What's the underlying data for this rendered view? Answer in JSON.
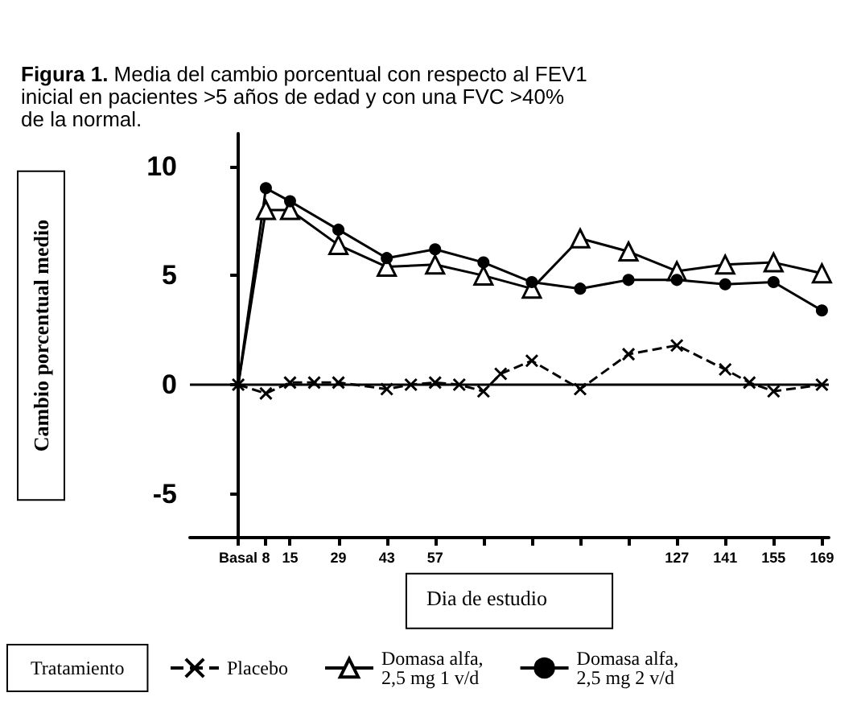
{
  "chart_data": {
    "type": "line",
    "title": "Figura 1. Media del cambio porcentual con respecto al FEV1 inicial en pacientes >5 años de edad y con una FVC >40% de la normal.",
    "xlabel": "Dia de estudio",
    "ylabel": "Cambio porcentual medio",
    "legend_title": "Tratamiento",
    "xlim": [
      -14,
      171
    ],
    "xticks": [
      {
        "value": 0,
        "label": "Basal"
      },
      8,
      15,
      29,
      43,
      57,
      {
        "value": 71,
        "label": null
      },
      {
        "value": 85,
        "label": null
      },
      {
        "value": 99,
        "label": null
      },
      {
        "value": 113,
        "label": null
      },
      127,
      141,
      155,
      169
    ],
    "ylim": [
      -7,
      11.5
    ],
    "yticks": [
      -5,
      0,
      5,
      10
    ],
    "grid": false,
    "legend": "bottom",
    "ref_lines": [
      {
        "axis": "y",
        "value": 0,
        "label": null
      }
    ],
    "series": [
      {
        "name": "Placebo",
        "color": "#000000",
        "marker": "cross",
        "line_style": "dashed",
        "x": [
          0,
          8,
          15,
          22,
          29,
          43,
          50,
          57,
          64,
          71,
          76,
          85,
          99,
          113,
          127,
          141,
          148,
          155,
          169
        ],
        "values": [
          0,
          -0.4,
          0.1,
          0.1,
          0.1,
          -0.2,
          0,
          0.1,
          0,
          -0.3,
          0.5,
          1.1,
          -0.2,
          1.4,
          1.8,
          0.7,
          0.1,
          -0.3,
          0
        ]
      },
      {
        "name": "Domasa alfa,\n2,5 mg 1 v/d",
        "color": "#000000",
        "marker": "triangle",
        "line_style": "solid",
        "x": [
          0,
          8,
          15,
          29,
          43,
          57,
          71,
          85,
          99,
          113,
          127,
          141,
          155,
          169
        ],
        "values": [
          0,
          8.0,
          8.0,
          6.4,
          5.4,
          5.5,
          5.0,
          4.4,
          6.7,
          6.1,
          5.2,
          5.5,
          5.6,
          5.1
        ]
      },
      {
        "name": "Domasa alfa,\n2,5 mg 2 v/d",
        "color": "#000000",
        "marker": "circle",
        "line_style": "solid",
        "x": [
          0,
          8,
          15,
          29,
          43,
          57,
          71,
          85,
          99,
          113,
          127,
          141,
          155,
          169
        ],
        "values": [
          0,
          9.0,
          8.4,
          7.1,
          5.8,
          6.2,
          5.6,
          4.7,
          4.4,
          4.8,
          4.8,
          4.6,
          4.7,
          3.4
        ]
      }
    ]
  }
}
